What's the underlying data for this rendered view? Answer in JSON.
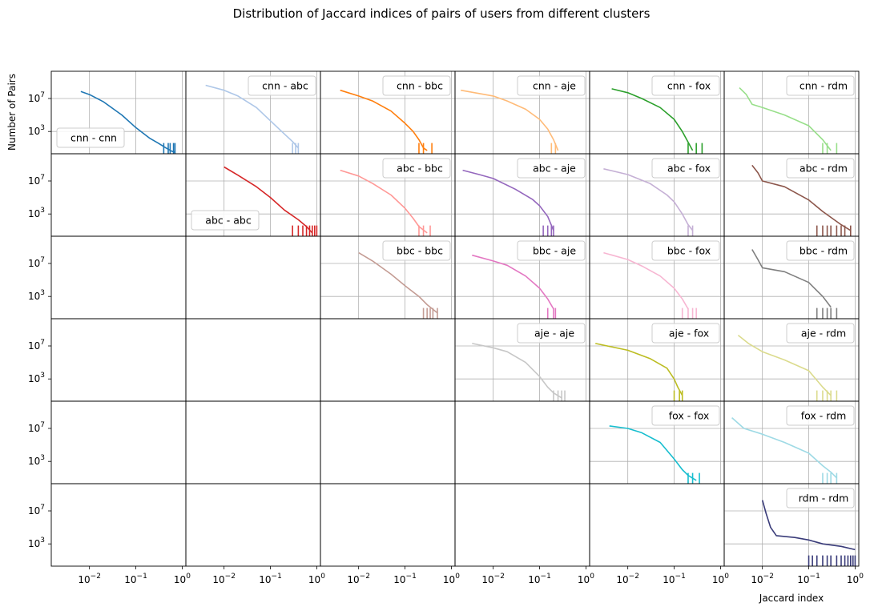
{
  "chart_data": {
    "type": "line",
    "title": "Distribution of Jaccard indices of pairs of users from different clusters",
    "xlabel": "Jaccard index",
    "ylabel": "Number of Pairs",
    "x_scale": "log",
    "y_scale": "log",
    "xlim": [
      0.0015,
      1.2
    ],
    "ylim": [
      2,
      20000000000
    ],
    "grid": true,
    "sharex": true,
    "sharey": true,
    "x_ticks": [
      {
        "value": 0.01,
        "base": "10",
        "exp": "−2"
      },
      {
        "value": 0.1,
        "base": "10",
        "exp": "−1"
      },
      {
        "value": 1,
        "base": "10",
        "exp": "0"
      }
    ],
    "y_ticks": [
      {
        "value": 1000,
        "base": "10",
        "exp": "3"
      },
      {
        "value": 10000000,
        "base": "10",
        "exp": "7"
      }
    ],
    "clusters": [
      "cnn",
      "abc",
      "bbc",
      "aje",
      "fox",
      "rdm"
    ],
    "panels": [
      {
        "row": 0,
        "col": 0,
        "label": "cnn - cnn",
        "color": "#1f77b4",
        "legend_loc": "lower-left",
        "points": [
          [
            0.0065,
            70000000
          ],
          [
            0.01,
            30000000
          ],
          [
            0.02,
            4000000
          ],
          [
            0.05,
            100000
          ],
          [
            0.1,
            3000
          ],
          [
            0.2,
            150
          ],
          [
            0.3,
            40
          ],
          [
            0.45,
            10
          ],
          [
            0.6,
            4
          ],
          [
            0.7,
            3
          ]
        ],
        "spikes": [
          0.4,
          0.5,
          0.55,
          0.65,
          0.7
        ]
      },
      {
        "row": 0,
        "col": 1,
        "label": "cnn - abc",
        "color": "#aec7e8",
        "legend_loc": "upper-right",
        "points": [
          [
            0.004,
            400000000
          ],
          [
            0.01,
            100000000
          ],
          [
            0.02,
            20000000
          ],
          [
            0.05,
            800000
          ],
          [
            0.1,
            20000
          ],
          [
            0.2,
            500
          ],
          [
            0.3,
            60
          ],
          [
            0.4,
            10
          ]
        ],
        "spikes": [
          0.3,
          0.35,
          0.4
        ]
      },
      {
        "row": 0,
        "col": 2,
        "label": "cnn - bbc",
        "color": "#ff7f0e",
        "legend_loc": "upper-right",
        "points": [
          [
            0.004,
            100000000
          ],
          [
            0.01,
            20000000
          ],
          [
            0.02,
            5000000
          ],
          [
            0.05,
            300000
          ],
          [
            0.1,
            10000
          ],
          [
            0.15,
            1000
          ],
          [
            0.2,
            100
          ],
          [
            0.25,
            10
          ],
          [
            0.3,
            5
          ]
        ],
        "spikes": [
          0.2,
          0.25,
          0.38
        ]
      },
      {
        "row": 0,
        "col": 3,
        "label": "cnn - aje",
        "color": "#ffbb78",
        "legend_loc": "upper-right",
        "points": [
          [
            0.002,
            100000000
          ],
          [
            0.01,
            20000000
          ],
          [
            0.02,
            5000000
          ],
          [
            0.05,
            500000
          ],
          [
            0.1,
            30000
          ],
          [
            0.15,
            2000
          ],
          [
            0.2,
            100
          ],
          [
            0.25,
            5
          ]
        ],
        "spikes": [
          0.18,
          0.22
        ]
      },
      {
        "row": 0,
        "col": 4,
        "label": "cnn - fox",
        "color": "#2ca02c",
        "legend_loc": "upper-right",
        "points": [
          [
            0.0045,
            150000000
          ],
          [
            0.01,
            50000000
          ],
          [
            0.02,
            10000000
          ],
          [
            0.05,
            800000
          ],
          [
            0.1,
            30000
          ],
          [
            0.15,
            1000
          ],
          [
            0.2,
            50
          ],
          [
            0.25,
            5
          ]
        ],
        "spikes": [
          0.2,
          0.3,
          0.4
        ]
      },
      {
        "row": 0,
        "col": 5,
        "label": "cnn - rdm",
        "color": "#98df8a",
        "legend_loc": "upper-right",
        "points": [
          [
            0.0032,
            200000000
          ],
          [
            0.0045,
            30000000
          ],
          [
            0.006,
            2000000
          ],
          [
            0.01,
            800000
          ],
          [
            0.03,
            100000
          ],
          [
            0.1,
            5000
          ],
          [
            0.2,
            100
          ],
          [
            0.3,
            5
          ]
        ],
        "spikes": [
          0.2,
          0.25,
          0.4
        ]
      },
      {
        "row": 1,
        "col": 1,
        "label": "abc - abc",
        "color": "#d62728",
        "legend_loc": "lower-left",
        "points": [
          [
            0.01,
            500000000
          ],
          [
            0.02,
            50000000
          ],
          [
            0.05,
            2000000
          ],
          [
            0.1,
            100000
          ],
          [
            0.2,
            3000
          ],
          [
            0.4,
            200
          ],
          [
            0.6,
            30
          ],
          [
            0.8,
            5
          ]
        ],
        "spikes": [
          0.3,
          0.4,
          0.5,
          0.6,
          0.7,
          0.8,
          0.9,
          1.0
        ]
      },
      {
        "row": 1,
        "col": 2,
        "label": "abc - bbc",
        "color": "#ff9896",
        "legend_loc": "upper-right",
        "points": [
          [
            0.004,
            200000000
          ],
          [
            0.01,
            40000000
          ],
          [
            0.02,
            5000000
          ],
          [
            0.05,
            200000
          ],
          [
            0.1,
            5000
          ],
          [
            0.15,
            300
          ],
          [
            0.2,
            30
          ],
          [
            0.3,
            5
          ]
        ],
        "spikes": [
          0.2,
          0.25,
          0.35
        ]
      },
      {
        "row": 1,
        "col": 3,
        "label": "abc - aje",
        "color": "#9467bd",
        "legend_loc": "upper-right",
        "points": [
          [
            0.0022,
            200000000
          ],
          [
            0.005,
            60000000
          ],
          [
            0.01,
            20000000
          ],
          [
            0.03,
            1000000
          ],
          [
            0.07,
            60000
          ],
          [
            0.1,
            10000
          ],
          [
            0.15,
            500
          ],
          [
            0.2,
            10
          ]
        ],
        "spikes": [
          0.12,
          0.15,
          0.18,
          0.2
        ]
      },
      {
        "row": 1,
        "col": 4,
        "label": "abc - fox",
        "color": "#c5b0d5",
        "legend_loc": "upper-right",
        "points": [
          [
            0.003,
            300000000
          ],
          [
            0.01,
            60000000
          ],
          [
            0.03,
            5000000
          ],
          [
            0.07,
            200000
          ],
          [
            0.1,
            30000
          ],
          [
            0.15,
            1000
          ],
          [
            0.2,
            50
          ],
          [
            0.25,
            10
          ]
        ],
        "spikes": [
          0.2,
          0.25
        ]
      },
      {
        "row": 1,
        "col": 5,
        "label": "abc - rdm",
        "color": "#8c564b",
        "legend_loc": "upper-right",
        "points": [
          [
            0.006,
            800000000
          ],
          [
            0.008,
            100000000
          ],
          [
            0.01,
            10000000
          ],
          [
            0.03,
            2000000
          ],
          [
            0.1,
            50000
          ],
          [
            0.2,
            2000
          ],
          [
            0.5,
            50
          ],
          [
            0.8,
            10
          ]
        ],
        "spikes": [
          0.15,
          0.2,
          0.25,
          0.3,
          0.4,
          0.5,
          0.6,
          0.8
        ]
      },
      {
        "row": 2,
        "col": 2,
        "label": "bbc - bbc",
        "color": "#c49c94",
        "legend_loc": "upper-right",
        "points": [
          [
            0.01,
            200000000
          ],
          [
            0.02,
            20000000
          ],
          [
            0.05,
            500000
          ],
          [
            0.1,
            20000
          ],
          [
            0.2,
            1000
          ],
          [
            0.3,
            100
          ],
          [
            0.5,
            10
          ]
        ],
        "spikes": [
          0.25,
          0.3,
          0.35,
          0.4,
          0.5
        ]
      },
      {
        "row": 2,
        "col": 3,
        "label": "bbc - aje",
        "color": "#e377c2",
        "legend_loc": "upper-right",
        "points": [
          [
            0.0035,
            100000000
          ],
          [
            0.01,
            20000000
          ],
          [
            0.02,
            6000000
          ],
          [
            0.05,
            300000
          ],
          [
            0.1,
            10000
          ],
          [
            0.15,
            500
          ],
          [
            0.2,
            30
          ]
        ],
        "spikes": [
          0.15,
          0.2,
          0.22
        ]
      },
      {
        "row": 2,
        "col": 4,
        "label": "bbc - fox",
        "color": "#f7b6d2",
        "legend_loc": "upper-right",
        "points": [
          [
            0.003,
            200000000
          ],
          [
            0.01,
            30000000
          ],
          [
            0.02,
            5000000
          ],
          [
            0.05,
            300000
          ],
          [
            0.1,
            10000
          ],
          [
            0.15,
            500
          ],
          [
            0.2,
            30
          ]
        ],
        "spikes": [
          0.15,
          0.2,
          0.25,
          0.3
        ]
      },
      {
        "row": 2,
        "col": 5,
        "label": "bbc - rdm",
        "color": "#7f7f7f",
        "legend_loc": "upper-right",
        "points": [
          [
            0.006,
            500000000
          ],
          [
            0.008,
            30000000
          ],
          [
            0.01,
            3000000
          ],
          [
            0.03,
            1000000
          ],
          [
            0.1,
            50000
          ],
          [
            0.2,
            1000
          ],
          [
            0.3,
            50
          ]
        ],
        "spikes": [
          0.15,
          0.2,
          0.25,
          0.3,
          0.4
        ]
      },
      {
        "row": 3,
        "col": 3,
        "label": "aje - aje",
        "color": "#c7c7c7",
        "legend_loc": "upper-right",
        "points": [
          [
            0.0035,
            20000000
          ],
          [
            0.01,
            6000000
          ],
          [
            0.02,
            2000000
          ],
          [
            0.05,
            100000
          ],
          [
            0.1,
            2000
          ],
          [
            0.15,
            100
          ],
          [
            0.2,
            20
          ],
          [
            0.3,
            5
          ]
        ],
        "spikes": [
          0.2,
          0.25,
          0.3,
          0.35
        ]
      },
      {
        "row": 3,
        "col": 4,
        "label": "aje - fox",
        "color": "#bcbd22",
        "legend_loc": "upper-right",
        "points": [
          [
            0.002,
            20000000
          ],
          [
            0.01,
            3000000
          ],
          [
            0.03,
            300000
          ],
          [
            0.07,
            20000
          ],
          [
            0.1,
            1000
          ],
          [
            0.12,
            100
          ],
          [
            0.15,
            10
          ]
        ],
        "spikes": [
          0.1,
          0.13,
          0.15
        ]
      },
      {
        "row": 3,
        "col": 5,
        "label": "aje - rdm",
        "color": "#dbdb8d",
        "legend_loc": "upper-right",
        "points": [
          [
            0.003,
            200000000
          ],
          [
            0.005,
            20000000
          ],
          [
            0.01,
            2000000
          ],
          [
            0.03,
            200000
          ],
          [
            0.1,
            10000
          ],
          [
            0.2,
            100
          ],
          [
            0.3,
            10
          ]
        ],
        "spikes": [
          0.15,
          0.2,
          0.25,
          0.3,
          0.4
        ]
      },
      {
        "row": 4,
        "col": 4,
        "label": "fox - fox",
        "color": "#17becf",
        "legend_loc": "upper-right",
        "points": [
          [
            0.004,
            20000000
          ],
          [
            0.01,
            10000000
          ],
          [
            0.02,
            3000000
          ],
          [
            0.05,
            200000
          ],
          [
            0.1,
            2000
          ],
          [
            0.15,
            100
          ],
          [
            0.2,
            20
          ],
          [
            0.3,
            5
          ]
        ],
        "spikes": [
          0.2,
          0.25,
          0.35
        ]
      },
      {
        "row": 4,
        "col": 5,
        "label": "fox - rdm",
        "color": "#9edae5",
        "legend_loc": "upper-right",
        "points": [
          [
            0.0022,
            200000000
          ],
          [
            0.004,
            10000000
          ],
          [
            0.01,
            2000000
          ],
          [
            0.03,
            200000
          ],
          [
            0.1,
            10000
          ],
          [
            0.2,
            300
          ],
          [
            0.3,
            50
          ],
          [
            0.4,
            10
          ]
        ],
        "spikes": [
          0.2,
          0.25,
          0.3,
          0.4
        ]
      },
      {
        "row": 5,
        "col": 5,
        "label": "rdm - rdm",
        "color": "#393b79",
        "legend_loc": "upper-right",
        "points": [
          [
            0.01,
            200000000
          ],
          [
            0.012,
            5000000
          ],
          [
            0.015,
            100000
          ],
          [
            0.02,
            10000
          ],
          [
            0.05,
            6000
          ],
          [
            0.1,
            3000
          ],
          [
            0.2,
            1000
          ],
          [
            0.5,
            500
          ],
          [
            1.0,
            200
          ]
        ],
        "spikes": [
          0.1,
          0.12,
          0.15,
          0.2,
          0.25,
          0.3,
          0.4,
          0.5,
          0.6,
          0.7,
          0.8,
          0.9,
          1.0
        ]
      }
    ]
  }
}
